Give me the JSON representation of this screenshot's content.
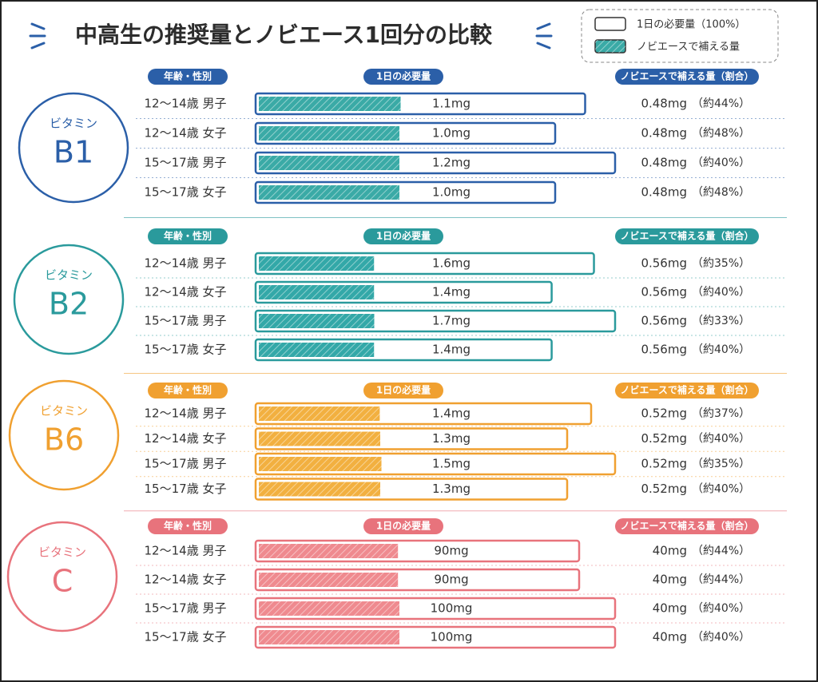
{
  "title": "中高生の推奨量とノビエース1回分の比較",
  "legend": {
    "required": "1日の必要量（100%）",
    "supplement": "ノビエースで補える量"
  },
  "sections": [
    {
      "name": "ビタミン",
      "label": "B1",
      "color": "#2b5fa8",
      "fill": "#3aaaa6",
      "headers": {
        "group": "年齢・性別",
        "required": "1日の必要量",
        "supplement": "ノビエースで補える量（割合）"
      },
      "rows": [
        {
          "group": "12～14歳 男子",
          "required": 1.1,
          "required_label": "1.1mg",
          "supplement": "0.48mg",
          "share": 44,
          "share_label": "（約44%）"
        },
        {
          "group": "12～14歳 女子",
          "required": 1.0,
          "required_label": "1.0mg",
          "supplement": "0.48mg",
          "share": 48,
          "share_label": "（約48%）"
        },
        {
          "group": "15～17歳 男子",
          "required": 1.2,
          "required_label": "1.2mg",
          "supplement": "0.48mg",
          "share": 40,
          "share_label": "（約40%）"
        },
        {
          "group": "15～17歳 女子",
          "required": 1.0,
          "required_label": "1.0mg",
          "supplement": "0.48mg",
          "share": 48,
          "share_label": "（約48%）"
        }
      ]
    },
    {
      "name": "ビタミン",
      "label": "B2",
      "color": "#2a9a9c",
      "fill": "#33a8a8",
      "headers": {
        "group": "年齢・性別",
        "required": "1日の必要量",
        "supplement": "ノビエースで補える量（割合）"
      },
      "rows": [
        {
          "group": "12～14歳 男子",
          "required": 1.6,
          "required_label": "1.6mg",
          "supplement": "0.56mg",
          "share": 35,
          "share_label": "（約35%）"
        },
        {
          "group": "12～14歳 女子",
          "required": 1.4,
          "required_label": "1.4mg",
          "supplement": "0.56mg",
          "share": 40,
          "share_label": "（約40%）"
        },
        {
          "group": "15～17歳 男子",
          "required": 1.7,
          "required_label": "1.7mg",
          "supplement": "0.56mg",
          "share": 33,
          "share_label": "（約33%）"
        },
        {
          "group": "15～17歳 女子",
          "required": 1.4,
          "required_label": "1.4mg",
          "supplement": "0.56mg",
          "share": 40,
          "share_label": "（約40%）"
        }
      ]
    },
    {
      "name": "ビタミン",
      "label": "B6",
      "color": "#f0a030",
      "fill": "#f2b040",
      "headers": {
        "group": "年齢・性別",
        "required": "1日の必要量",
        "supplement": "ノビエースで補える量（割合）"
      },
      "rows": [
        {
          "group": "12～14歳 男子",
          "required": 1.4,
          "required_label": "1.4mg",
          "supplement": "0.52mg",
          "share": 37,
          "share_label": "（約37%）"
        },
        {
          "group": "12～14歳 女子",
          "required": 1.3,
          "required_label": "1.3mg",
          "supplement": "0.52mg",
          "share": 40,
          "share_label": "（約40%）"
        },
        {
          "group": "15～17歳 男子",
          "required": 1.5,
          "required_label": "1.5mg",
          "supplement": "0.52mg",
          "share": 35,
          "share_label": "（約35%）"
        },
        {
          "group": "15～17歳 女子",
          "required": 1.3,
          "required_label": "1.3mg",
          "supplement": "0.52mg",
          "share": 40,
          "share_label": "（約40%）"
        }
      ]
    },
    {
      "name": "ビタミン",
      "label": "C",
      "color": "#e8737c",
      "fill": "#ef8a8f",
      "headers": {
        "group": "年齢・性別",
        "required": "1日の必要量",
        "supplement": "ノビエースで補える量（割合）"
      },
      "rows": [
        {
          "group": "12～14歳 男子",
          "required": 90,
          "required_label": "90mg",
          "supplement": "40mg",
          "share": 44,
          "share_label": "（約44%）"
        },
        {
          "group": "12～14歳 女子",
          "required": 90,
          "required_label": "90mg",
          "supplement": "40mg",
          "share": 44,
          "share_label": "（約44%）"
        },
        {
          "group": "15～17歳 男子",
          "required": 100,
          "required_label": "100mg",
          "supplement": "40mg",
          "share": 40,
          "share_label": "（約40%）"
        },
        {
          "group": "15～17歳 女子",
          "required": 100,
          "required_label": "100mg",
          "supplement": "40mg",
          "share": 40,
          "share_label": "（約40%）"
        }
      ]
    }
  ]
}
